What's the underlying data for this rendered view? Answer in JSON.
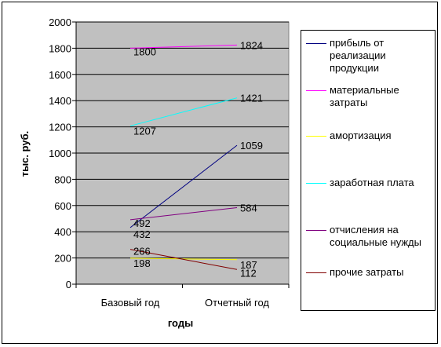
{
  "chart_data": {
    "type": "line",
    "title": "",
    "xlabel": "годы",
    "ylabel": "тыс. руб.",
    "categories": [
      "Базовый год",
      "Отчетный год"
    ],
    "ylim": [
      0,
      2000
    ],
    "yticks": [
      "0",
      "200",
      "400",
      "600",
      "800",
      "1000",
      "1200",
      "1400",
      "1600",
      "1800",
      "2000"
    ],
    "grid": true,
    "legend_position": "right",
    "plot_background": "#c0c0c0",
    "series": [
      {
        "name": "прибыль от реализации продукции",
        "color": "#000080",
        "values": [
          432,
          1059
        ],
        "labels": [
          "432",
          "1059"
        ]
      },
      {
        "name": "материальные затраты",
        "color": "#ff00ff",
        "values": [
          1800,
          1824
        ],
        "labels": [
          "1800",
          "1824"
        ]
      },
      {
        "name": "амортизация",
        "color": "#ffff00",
        "values": [
          198,
          187
        ],
        "labels": [
          "198",
          "187"
        ]
      },
      {
        "name": "заработная плата",
        "color": "#00ffff",
        "values": [
          1207,
          1421
        ],
        "labels": [
          "1207",
          "1421"
        ]
      },
      {
        "name": "отчисления на социальные нужды",
        "color": "#800080",
        "values": [
          492,
          584
        ],
        "labels": [
          "492",
          "584"
        ]
      },
      {
        "name": "прочие затраты",
        "color": "#800000",
        "values": [
          266,
          112
        ],
        "labels": [
          "266",
          "112"
        ]
      }
    ]
  }
}
